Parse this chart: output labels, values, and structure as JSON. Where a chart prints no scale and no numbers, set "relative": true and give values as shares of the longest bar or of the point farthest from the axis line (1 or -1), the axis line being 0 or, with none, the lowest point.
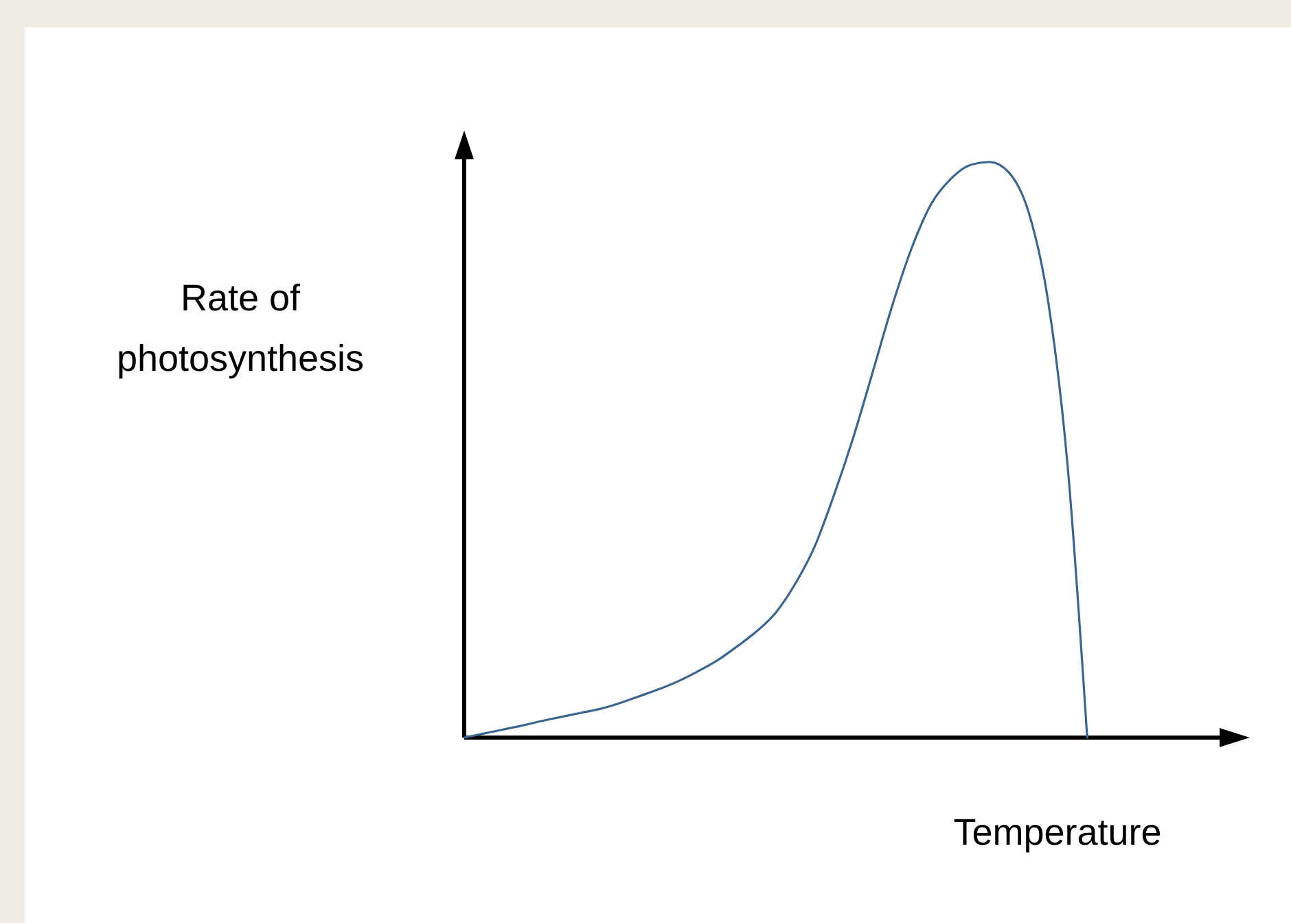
{
  "chart_data": {
    "type": "line",
    "relative": true,
    "ylabel": "Rate of photosynthesis",
    "xlabel": "Temperature",
    "categories": [
      null,
      null,
      null,
      null,
      null,
      null,
      null,
      null,
      null,
      null,
      null,
      null,
      null,
      null,
      null,
      null,
      null,
      null,
      null,
      null,
      null,
      null,
      null,
      null,
      null,
      null,
      null,
      null,
      null,
      null,
      null,
      null,
      null,
      null,
      null,
      null,
      null,
      null,
      null,
      null,
      null
    ],
    "series": [
      {
        "color": "#3b6590",
        "values": [
          0,
          0.007,
          0.014,
          0.021,
          0.029,
          0.036,
          0.043,
          0.05,
          0.06,
          0.072,
          0.084,
          0.098,
          0.115,
          0.134,
          0.158,
          0.184,
          0.217,
          0.267,
          0.332,
          0.422,
          0.523,
          0.637,
          0.752,
          0.852,
          0.928,
          0.971,
          0.995,
          1,
          0.981,
          0.912,
          0.757,
          0.47,
          0,
          null,
          null,
          null,
          null,
          null,
          null,
          null,
          null
        ]
      }
    ],
    "marker": "none",
    "line_style": "solid"
  }
}
